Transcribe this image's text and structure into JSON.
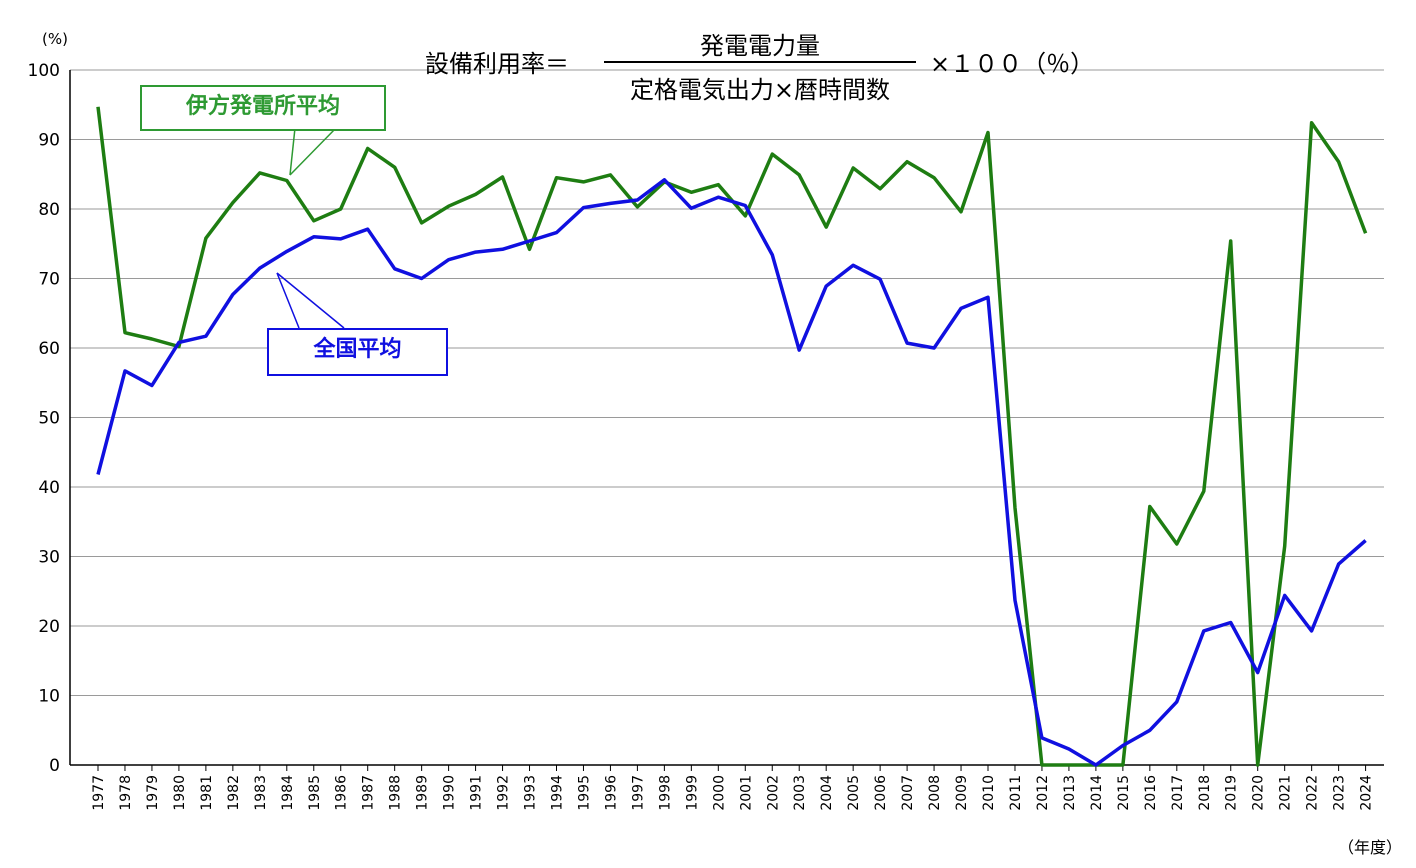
{
  "formula": {
    "lhs": "設備利用率＝",
    "numerator": "発電電力量",
    "denominator": "定格電気出力×暦時間数",
    "rhs": "×１００（％）"
  },
  "chart_data": {
    "type": "line",
    "y_unit": "(%)",
    "x_unit": "（年度）",
    "ylim": [
      0,
      100
    ],
    "yticks": [
      "0",
      "10",
      "20",
      "30",
      "40",
      "50",
      "60",
      "70",
      "80",
      "90",
      "100"
    ],
    "grid": true,
    "categories": [
      "1977",
      "1978",
      "1979",
      "1980",
      "1981",
      "1982",
      "1983",
      "1984",
      "1985",
      "1986",
      "1987",
      "1988",
      "1989",
      "1990",
      "1991",
      "1992",
      "1993",
      "1994",
      "1995",
      "1996",
      "1997",
      "1998",
      "1999",
      "2000",
      "2001",
      "2002",
      "2003",
      "2004",
      "2005",
      "2006",
      "2007",
      "2008",
      "2009",
      "2010",
      "2011",
      "2012",
      "2013",
      "2014",
      "2015",
      "2016",
      "2017",
      "2018",
      "2019",
      "2020",
      "2021",
      "2022",
      "2023",
      "2024"
    ],
    "series": [
      {
        "name": "伊方発電所平均",
        "color": "#1e7d12",
        "values": [
          94.7,
          62.2,
          61.3,
          60.2,
          75.8,
          80.9,
          85.2,
          84.1,
          78.3,
          80.0,
          88.7,
          86.0,
          78.0,
          80.4,
          82.1,
          84.6,
          74.2,
          84.5,
          83.9,
          84.9,
          80.3,
          83.9,
          82.4,
          83.5,
          79.0,
          87.9,
          84.9,
          77.4,
          85.9,
          82.9,
          86.8,
          84.5,
          79.6,
          91.0,
          37.0,
          0,
          0,
          0,
          0,
          37.2,
          31.8,
          39.4,
          75.4,
          0,
          31.5,
          92.4,
          86.8,
          76.5
        ]
      },
      {
        "name": "全国平均",
        "color": "#1010e0",
        "values": [
          41.8,
          56.7,
          54.6,
          60.8,
          61.7,
          67.7,
          71.5,
          73.9,
          76.0,
          75.7,
          77.1,
          71.4,
          70.0,
          72.7,
          73.8,
          74.2,
          75.4,
          76.6,
          80.2,
          80.8,
          81.3,
          84.2,
          80.1,
          81.7,
          80.5,
          73.4,
          59.7,
          68.9,
          71.9,
          69.9,
          60.7,
          60.0,
          65.7,
          67.3,
          23.7,
          3.9,
          2.3,
          0,
          2.8,
          5.0,
          9.1,
          19.3,
          20.5,
          13.3,
          24.4,
          19.3,
          28.9,
          32.3
        ]
      }
    ]
  }
}
